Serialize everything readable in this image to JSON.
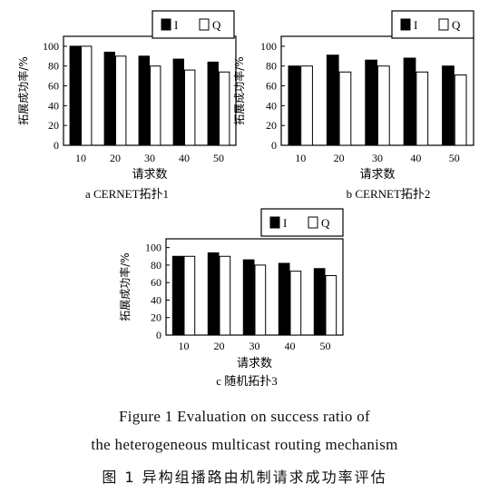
{
  "chart_data": [
    {
      "type": "bar",
      "caption": "a  CERNET拓扑1",
      "xlabel": "请求数",
      "ylabel": "拓展成功率/%",
      "categories": [
        "10",
        "20",
        "30",
        "40",
        "50"
      ],
      "yticks": [
        "0",
        "20",
        "40",
        "60",
        "80",
        "100"
      ],
      "ylim": [
        0,
        110
      ],
      "legend_position": "top-right",
      "series": [
        {
          "name": "I",
          "color": "#000000",
          "values": [
            100,
            94,
            90,
            87,
            84
          ]
        },
        {
          "name": "Q",
          "color": "#ffffff",
          "values": [
            100,
            90,
            80,
            76,
            74
          ]
        }
      ]
    },
    {
      "type": "bar",
      "caption": "b  CERNET拓扑2",
      "xlabel": "请求数",
      "ylabel": "拓展成功率/%",
      "categories": [
        "10",
        "20",
        "30",
        "40",
        "50"
      ],
      "yticks": [
        "0",
        "20",
        "40",
        "60",
        "80",
        "100"
      ],
      "ylim": [
        0,
        110
      ],
      "legend_position": "top-right",
      "series": [
        {
          "name": "I",
          "color": "#000000",
          "values": [
            80,
            91,
            86,
            88,
            80
          ]
        },
        {
          "name": "Q",
          "color": "#ffffff",
          "values": [
            80,
            74,
            80,
            74,
            71
          ]
        }
      ]
    },
    {
      "type": "bar",
      "caption": "c  随机拓扑3",
      "xlabel": "请求数",
      "ylabel": "拓展成功率/%",
      "categories": [
        "10",
        "20",
        "30",
        "40",
        "50"
      ],
      "yticks": [
        "0",
        "20",
        "40",
        "60",
        "80",
        "100"
      ],
      "ylim": [
        0,
        110
      ],
      "legend_position": "top-right",
      "series": [
        {
          "name": "I",
          "color": "#000000",
          "values": [
            90,
            94,
            86,
            82,
            76
          ]
        },
        {
          "name": "Q",
          "color": "#ffffff",
          "values": [
            90,
            90,
            80,
            73,
            68
          ]
        }
      ]
    }
  ],
  "figure_caption": {
    "en_line1": "Figure 1    Evaluation on success ratio of",
    "en_line2": "the heterogeneous multicast routing mechanism",
    "zh": "图 1   异构组播路由机制请求成功率评估"
  }
}
